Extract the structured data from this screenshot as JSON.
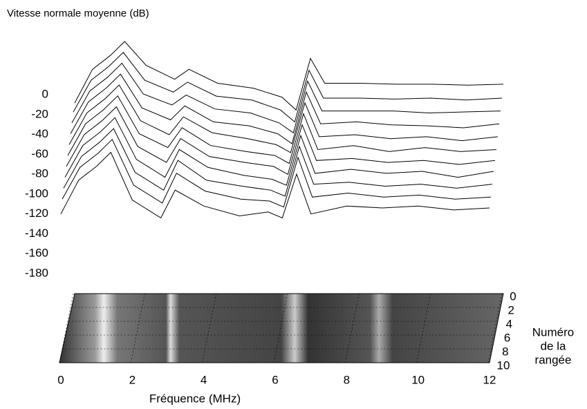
{
  "chart_data": {
    "type": "waterfall",
    "title": "Vitesse normale moyenne (dB)",
    "xlabel": "Fréquence (MHz)",
    "row_axis_label": [
      "Numéro",
      "de la",
      "rangée"
    ],
    "x": [
      0,
      0.5,
      1,
      1.4,
      2,
      2.8,
      3.2,
      4,
      5,
      5.8,
      6.2,
      6.6,
      7,
      8,
      9,
      10,
      11,
      12
    ],
    "xlim": [
      0,
      12
    ],
    "xticks": [
      0,
      2,
      4,
      6,
      8,
      10,
      12
    ],
    "zlim": [
      -180,
      0
    ],
    "zticks": [
      0,
      -20,
      -40,
      -60,
      -80,
      -100,
      -120,
      -140,
      -160,
      -180
    ],
    "rowlim": [
      0,
      10
    ],
    "rowticks": [
      0,
      2,
      4,
      6,
      8,
      10
    ],
    "color": "#000000",
    "series": [
      {
        "row": 0,
        "values": [
          -78,
          -44,
          -30,
          -16,
          -40,
          -54,
          -44,
          -58,
          -63,
          -72,
          -85,
          -33,
          -58,
          -58,
          -59,
          -59,
          -60,
          -59
        ]
      },
      {
        "row": 1,
        "values": [
          -80,
          -48,
          -34,
          -20,
          -48,
          -60,
          -50,
          -64,
          -68,
          -78,
          -90,
          -38,
          -66,
          -66,
          -67,
          -66,
          -68,
          -66
        ]
      },
      {
        "row": 2,
        "values": [
          -84,
          -52,
          -38,
          -24,
          -55,
          -66,
          -56,
          -70,
          -74,
          -84,
          -94,
          -42,
          -72,
          -72,
          -72,
          -74,
          -73,
          -72
        ]
      },
      {
        "row": 3,
        "values": [
          -88,
          -56,
          -42,
          -28,
          -62,
          -74,
          -60,
          -76,
          -80,
          -88,
          -98,
          -46,
          -78,
          -76,
          -79,
          -80,
          -82,
          -78
        ]
      },
      {
        "row": 4,
        "values": [
          -92,
          -60,
          -46,
          -32,
          -68,
          -82,
          -64,
          -80,
          -86,
          -92,
          -100,
          -50,
          -84,
          -82,
          -86,
          -84,
          -88,
          -84
        ]
      },
      {
        "row": 5,
        "values": [
          -96,
          -64,
          -50,
          -36,
          -74,
          -88,
          -68,
          -86,
          -92,
          -96,
          -104,
          -54,
          -90,
          -86,
          -92,
          -88,
          -92,
          -90
        ]
      },
      {
        "row": 6,
        "values": [
          -100,
          -68,
          -54,
          -40,
          -80,
          -96,
          -72,
          -90,
          -96,
          -100,
          -108,
          -58,
          -94,
          -92,
          -96,
          -94,
          -98,
          -94
        ]
      },
      {
        "row": 7,
        "values": [
          -104,
          -72,
          -58,
          -44,
          -86,
          -104,
          -76,
          -94,
          -102,
          -106,
          -112,
          -62,
          -100,
          -96,
          -100,
          -98,
          -104,
          -98
        ]
      },
      {
        "row": 8,
        "values": [
          -108,
          -76,
          -62,
          -48,
          -92,
          -110,
          -80,
          -100,
          -106,
          -110,
          -116,
          -66,
          -104,
          -102,
          -106,
          -104,
          -108,
          -104
        ]
      },
      {
        "row": 9,
        "values": [
          -112,
          -80,
          -66,
          -52,
          -98,
          -116,
          -86,
          -104,
          -112,
          -114,
          -120,
          -70,
          -110,
          -106,
          -110,
          -108,
          -112,
          -110
        ]
      },
      {
        "row": 10,
        "values": [
          -120,
          -86,
          -72,
          -58,
          -106,
          -124,
          -96,
          -112,
          -122,
          -118,
          -124,
          -80,
          -120,
          -112,
          -114,
          -112,
          -116,
          -114
        ]
      }
    ]
  }
}
